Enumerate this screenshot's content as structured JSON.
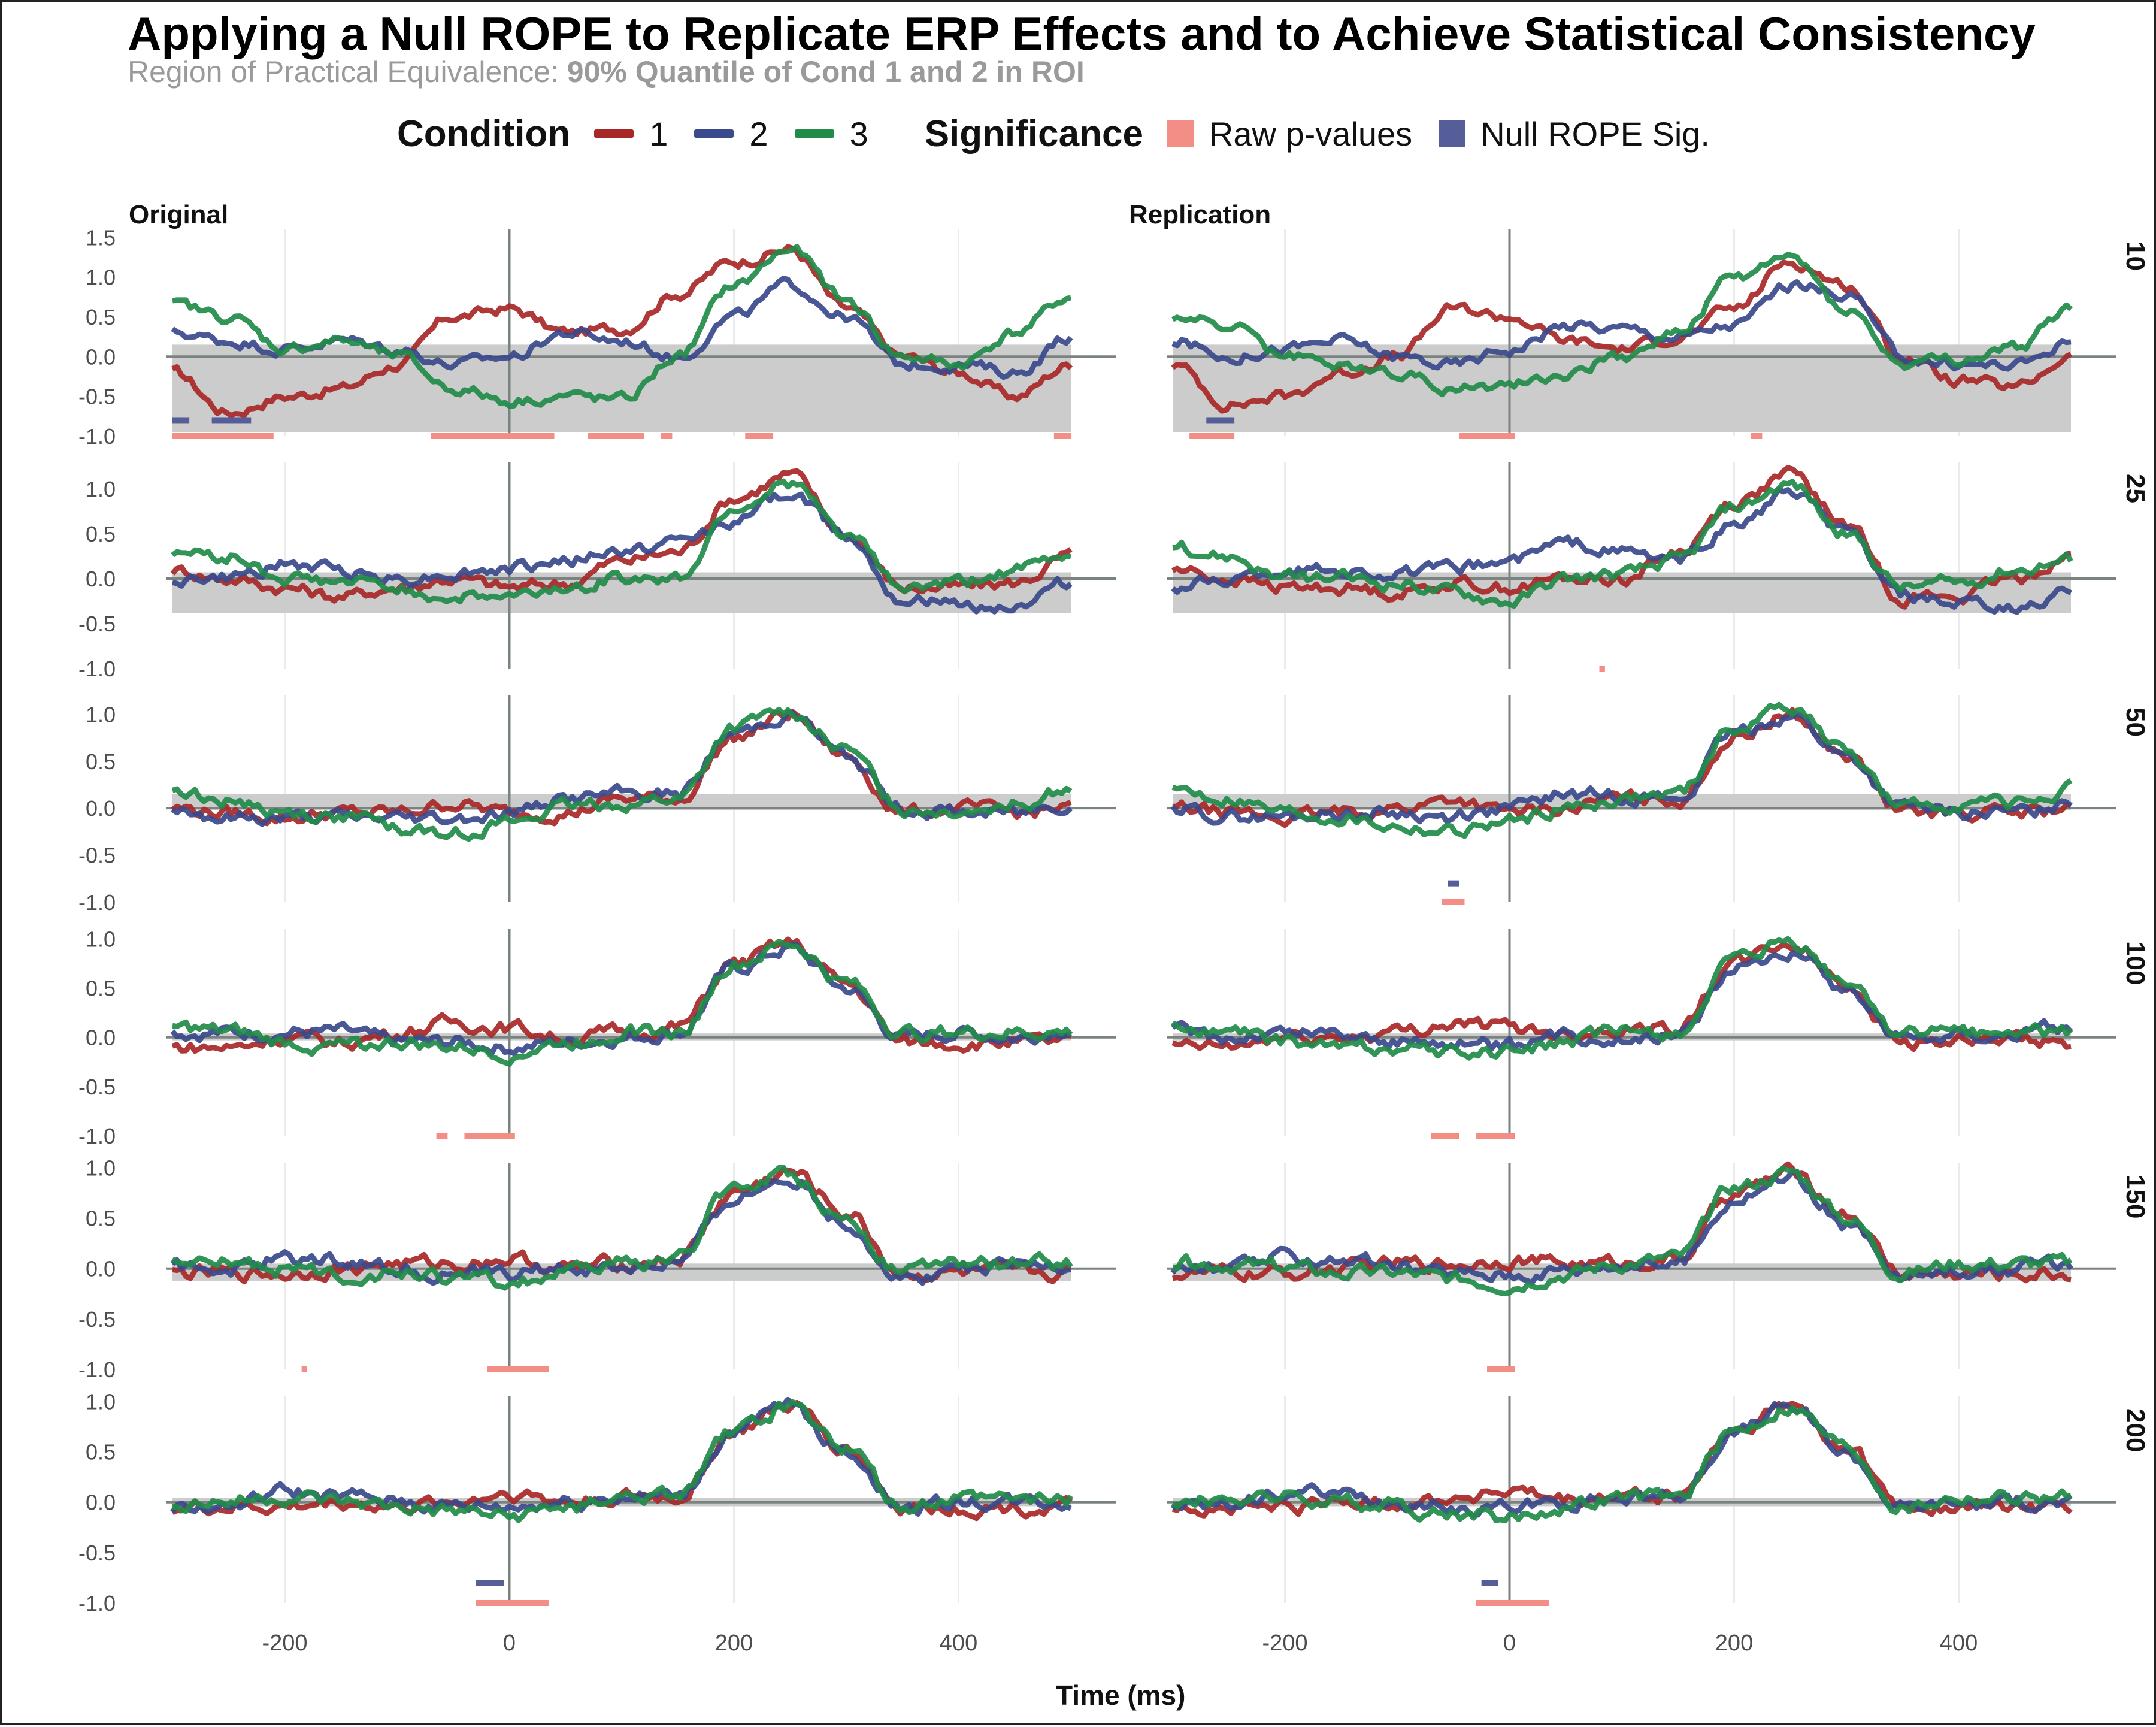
{
  "title": "Applying a Null ROPE to Replicate ERP Effects and to Achieve Statistical Consistency",
  "subtitle_prefix": "Region of Practical Equivalence:",
  "subtitle_bold": "90% Quantile of Cond 1 and 2 in ROI",
  "legend": {
    "condition_title": "Condition",
    "conditions": [
      {
        "label": "1",
        "color": "#a82828"
      },
      {
        "label": "2",
        "color": "#3a4a8c"
      },
      {
        "label": "3",
        "color": "#228b4a"
      }
    ],
    "significance_title": "Significance",
    "significance": [
      {
        "label": "Raw p-values",
        "color": "#f28e86"
      },
      {
        "label": "Null ROPE Sig.",
        "color": "#565e9a"
      }
    ]
  },
  "colors": {
    "cond1": "#a82828",
    "cond2": "#3a4a8c",
    "cond3": "#228b4a",
    "raw_p": "#f28e86",
    "rope_sig": "#565e9a",
    "rope_band": "#cccccc",
    "zero_line": "#7a8380",
    "grid": "#ebebeb"
  },
  "chart_data": {
    "type": "line",
    "columns": [
      "Original",
      "Replication"
    ],
    "rows": [
      "10",
      "25",
      "50",
      "100",
      "150",
      "200"
    ],
    "xlabel": "Time (ms)",
    "xlim": [
      -300,
      500
    ],
    "xticks": [
      -200,
      0,
      200,
      400
    ],
    "xtick_labels": [
      "-200",
      "0",
      "200",
      "400"
    ],
    "ylim_by_row": [
      [
        -1.0,
        1.6
      ],
      [
        -1.0,
        1.3
      ],
      [
        -1.0,
        1.2
      ],
      [
        -1.0,
        1.1
      ],
      [
        -1.0,
        1.05
      ],
      [
        -1.0,
        1.05
      ]
    ],
    "yticks_by_row": [
      [
        "-1.0",
        "-0.5",
        "0.0",
        "0.5",
        "1.0",
        "1.5"
      ],
      [
        "-1.0",
        "-0.5",
        "0.0",
        "0.5",
        "1.0"
      ],
      [
        "-1.0",
        "-0.5",
        "0.0",
        "0.5",
        "1.0"
      ],
      [
        "-1.0",
        "-0.5",
        "0.0",
        "0.5",
        "1.0"
      ],
      [
        "-1.0",
        "-0.5",
        "0.0",
        "0.5",
        "1.0"
      ],
      [
        "-1.0",
        "-0.5",
        "0.0",
        "0.5",
        "1.0"
      ]
    ],
    "rope_by_row": [
      [
        -0.95,
        0.15
      ],
      [
        -0.38,
        0.07
      ],
      [
        -0.02,
        0.15
      ],
      [
        -0.03,
        0.04
      ],
      [
        -0.12,
        0.05
      ],
      [
        -0.04,
        0.04
      ]
    ],
    "time": [
      -300,
      -250,
      -200,
      -150,
      -100,
      -50,
      0,
      50,
      100,
      150,
      200,
      250,
      300,
      350,
      400,
      450,
      500
    ],
    "panels": {
      "Original": [
        {
          "cond1": [
            -0.2,
            -0.7,
            -0.5,
            -0.4,
            -0.1,
            0.5,
            0.6,
            0.3,
            0.35,
            0.8,
            1.2,
            1.35,
            0.6,
            0.0,
            -0.2,
            -0.5,
            -0.1
          ],
          "cond2": [
            0.3,
            0.2,
            0.1,
            0.2,
            0.1,
            -0.1,
            0.0,
            0.3,
            0.2,
            0.0,
            0.5,
            0.9,
            0.5,
            -0.1,
            -0.1,
            -0.2,
            0.25
          ],
          "cond3": [
            0.65,
            0.5,
            0.1,
            0.2,
            0.0,
            -0.4,
            -0.55,
            -0.5,
            -0.55,
            0.0,
            0.9,
            1.35,
            0.7,
            0.0,
            -0.1,
            0.3,
            0.75
          ],
          "raw_sig": [
            [
              -300,
              -210
            ],
            [
              -70,
              40
            ],
            [
              70,
              120
            ],
            [
              135,
              145
            ],
            [
              210,
              235
            ],
            [
              485,
              500
            ]
          ],
          "rope_sig": [
            [
              -300,
              -285
            ],
            [
              -265,
              -230
            ]
          ]
        },
        {
          "cond1": [
            0.1,
            0.0,
            -0.1,
            -0.2,
            -0.1,
            0.0,
            -0.1,
            -0.05,
            0.2,
            0.3,
            0.9,
            1.15,
            0.5,
            -0.1,
            -0.1,
            -0.05,
            0.25
          ],
          "cond2": [
            0.0,
            0.0,
            0.15,
            0.1,
            0.0,
            0.05,
            0.1,
            0.2,
            0.3,
            0.4,
            0.65,
            0.95,
            0.5,
            -0.2,
            -0.3,
            -0.3,
            -0.05
          ],
          "cond3": [
            0.3,
            0.25,
            0.0,
            -0.05,
            -0.1,
            -0.2,
            -0.2,
            -0.1,
            0.0,
            0.0,
            0.8,
            1.05,
            0.5,
            -0.1,
            -0.05,
            0.1,
            0.25
          ],
          "raw_sig": [],
          "rope_sig": []
        },
        {
          "cond1": [
            0.0,
            -0.05,
            -0.1,
            -0.05,
            -0.05,
            0.05,
            -0.05,
            -0.05,
            0.1,
            0.1,
            0.75,
            1.0,
            0.55,
            -0.05,
            0.0,
            -0.05,
            0.0
          ],
          "cond2": [
            0.0,
            -0.1,
            -0.1,
            -0.1,
            -0.1,
            -0.1,
            -0.05,
            0.1,
            0.15,
            0.15,
            0.8,
            1.0,
            0.55,
            0.0,
            -0.05,
            -0.05,
            0.05
          ],
          "cond3": [
            0.2,
            0.1,
            -0.05,
            -0.1,
            -0.2,
            -0.25,
            -0.15,
            0.0,
            0.05,
            0.1,
            0.85,
            1.05,
            0.6,
            0.0,
            0.0,
            0.05,
            0.2
          ],
          "raw_sig": [],
          "rope_sig": []
        },
        {
          "cond1": [
            -0.1,
            -0.1,
            0.0,
            -0.05,
            0.05,
            0.15,
            0.1,
            0.0,
            0.05,
            0.1,
            0.75,
            0.95,
            0.55,
            -0.05,
            -0.05,
            -0.05,
            -0.05
          ],
          "cond2": [
            0.05,
            0.05,
            0.05,
            0.05,
            -0.05,
            -0.05,
            -0.1,
            -0.05,
            0.0,
            0.05,
            0.7,
            0.9,
            0.5,
            0.0,
            0.05,
            0.0,
            0.1
          ],
          "cond3": [
            0.1,
            0.05,
            -0.05,
            -0.1,
            -0.05,
            -0.1,
            -0.15,
            -0.05,
            0.05,
            0.05,
            0.75,
            0.95,
            0.55,
            0.05,
            0.05,
            0.05,
            0.05
          ],
          "raw_sig": [
            [
              -65,
              -55
            ],
            [
              -40,
              5
            ]
          ],
          "rope_sig": []
        },
        {
          "cond1": [
            -0.05,
            -0.05,
            -0.05,
            0.0,
            0.05,
            0.05,
            0.1,
            0.0,
            0.05,
            0.1,
            0.75,
            0.95,
            0.55,
            -0.05,
            -0.05,
            -0.05,
            -0.05
          ],
          "cond2": [
            0.0,
            0.0,
            0.1,
            0.1,
            0.0,
            -0.05,
            -0.05,
            0.0,
            0.0,
            0.05,
            0.7,
            0.9,
            0.45,
            -0.1,
            0.0,
            0.0,
            0.05
          ],
          "cond3": [
            0.05,
            0.05,
            0.0,
            -0.05,
            -0.05,
            -0.1,
            -0.15,
            -0.05,
            0.05,
            0.1,
            0.8,
            0.95,
            0.5,
            -0.05,
            0.05,
            0.05,
            0.05
          ],
          "raw_sig": [
            [
              -185,
              -180
            ],
            [
              -20,
              35
            ]
          ],
          "rope_sig": []
        },
        {
          "cond1": [
            -0.05,
            -0.05,
            -0.05,
            0.0,
            -0.05,
            0.0,
            0.1,
            0.0,
            0.05,
            0.05,
            0.7,
            0.95,
            0.55,
            -0.05,
            -0.05,
            -0.05,
            -0.05
          ],
          "cond2": [
            -0.05,
            -0.05,
            0.1,
            0.05,
            0.0,
            -0.05,
            -0.05,
            0.0,
            0.05,
            0.05,
            0.7,
            0.95,
            0.5,
            -0.05,
            0.0,
            0.0,
            0.0
          ],
          "cond3": [
            0.0,
            0.0,
            0.05,
            0.0,
            -0.05,
            -0.1,
            -0.15,
            -0.05,
            0.05,
            0.05,
            0.7,
            0.95,
            0.55,
            -0.05,
            0.05,
            0.05,
            0.05
          ],
          "raw_sig": [
            [
              -30,
              35
            ]
          ],
          "rope_sig": [
            [
              -30,
              -5
            ]
          ]
        }
      ],
      "Replication": [
        {
          "cond1": [
            -0.1,
            -0.6,
            -0.5,
            -0.2,
            0.0,
            0.6,
            0.5,
            0.2,
            0.1,
            0.25,
            0.6,
            1.2,
            0.9,
            0.0,
            -0.3,
            -0.4,
            0.0
          ],
          "cond2": [
            0.2,
            0.0,
            0.1,
            0.2,
            0.0,
            -0.1,
            0.1,
            0.4,
            0.35,
            0.25,
            0.4,
            0.9,
            0.8,
            0.0,
            -0.1,
            -0.1,
            0.2
          ],
          "cond3": [
            0.5,
            0.4,
            0.0,
            -0.1,
            -0.2,
            -0.4,
            -0.35,
            -0.2,
            0.0,
            0.3,
            1.0,
            1.25,
            0.6,
            -0.1,
            -0.05,
            0.1,
            0.6
          ],
          "raw_sig": [
            [
              -285,
              -245
            ],
            [
              -45,
              5
            ],
            [
              215,
              225
            ]
          ],
          "rope_sig": [
            [
              -270,
              -245
            ]
          ]
        },
        {
          "cond1": [
            0.1,
            0.0,
            -0.1,
            -0.1,
            -0.15,
            -0.05,
            -0.1,
            0.0,
            0.0,
            0.3,
            0.85,
            1.15,
            0.6,
            -0.2,
            -0.2,
            0.0,
            0.25
          ],
          "cond2": [
            -0.1,
            0.0,
            0.1,
            0.1,
            0.05,
            0.1,
            0.2,
            0.4,
            0.3,
            0.2,
            0.6,
            0.95,
            0.5,
            -0.2,
            -0.3,
            -0.35,
            -0.15
          ],
          "cond3": [
            0.35,
            0.25,
            0.0,
            0.0,
            -0.05,
            -0.15,
            -0.25,
            0.0,
            0.05,
            0.2,
            0.8,
            1.05,
            0.5,
            -0.1,
            -0.05,
            0.1,
            0.2
          ],
          "raw_sig": [
            [
              80,
              85
            ]
          ],
          "rope_sig": []
        },
        {
          "cond1": [
            0.0,
            -0.05,
            -0.1,
            -0.05,
            0.0,
            0.1,
            -0.05,
            0.0,
            0.1,
            0.1,
            0.75,
            1.0,
            0.55,
            -0.05,
            -0.05,
            -0.05,
            0.0
          ],
          "cond2": [
            0.0,
            -0.1,
            -0.1,
            -0.05,
            -0.05,
            -0.1,
            0.0,
            0.15,
            0.15,
            0.1,
            0.8,
            1.0,
            0.55,
            0.0,
            -0.05,
            -0.05,
            0.05
          ],
          "cond3": [
            0.2,
            0.1,
            -0.05,
            -0.1,
            -0.2,
            -0.25,
            -0.15,
            0.0,
            0.1,
            0.15,
            0.85,
            1.1,
            0.6,
            0.0,
            0.05,
            0.05,
            0.2
          ],
          "raw_sig": [
            [
              -60,
              -40
            ]
          ],
          "rope_sig": [
            [
              -55,
              -45
            ]
          ]
        },
        {
          "cond1": [
            -0.1,
            -0.1,
            0.0,
            0.0,
            0.05,
            0.15,
            0.1,
            0.05,
            0.1,
            0.1,
            0.75,
            0.95,
            0.55,
            -0.05,
            -0.05,
            -0.05,
            -0.05
          ],
          "cond2": [
            0.05,
            0.0,
            0.05,
            0.05,
            -0.05,
            -0.05,
            -0.1,
            0.0,
            0.0,
            0.05,
            0.7,
            0.9,
            0.5,
            0.0,
            0.05,
            0.05,
            0.1
          ],
          "cond3": [
            0.1,
            0.05,
            -0.05,
            -0.1,
            -0.1,
            -0.15,
            -0.15,
            -0.05,
            0.05,
            0.05,
            0.75,
            0.95,
            0.55,
            0.05,
            0.05,
            0.05,
            0.05
          ],
          "raw_sig": [
            [
              -70,
              -45
            ],
            [
              -30,
              5
            ]
          ],
          "rope_sig": []
        },
        {
          "cond1": [
            -0.05,
            -0.05,
            -0.05,
            0.0,
            0.05,
            0.05,
            0.1,
            0.05,
            0.05,
            0.1,
            0.75,
            0.95,
            0.55,
            -0.05,
            -0.05,
            -0.05,
            -0.05
          ],
          "cond2": [
            0.0,
            0.0,
            0.1,
            0.1,
            0.0,
            -0.05,
            -0.05,
            0.0,
            0.05,
            0.05,
            0.7,
            0.9,
            0.45,
            -0.1,
            0.0,
            0.0,
            0.05
          ],
          "cond3": [
            0.05,
            0.05,
            0.0,
            -0.05,
            -0.05,
            -0.1,
            -0.15,
            -0.05,
            0.05,
            0.1,
            0.8,
            0.95,
            0.5,
            -0.05,
            0.05,
            0.05,
            0.05
          ],
          "raw_sig": [
            [
              -20,
              5
            ]
          ],
          "rope_sig": []
        },
        {
          "cond1": [
            -0.05,
            -0.05,
            -0.05,
            0.0,
            0.0,
            0.05,
            0.1,
            0.0,
            0.05,
            0.05,
            0.7,
            0.95,
            0.55,
            -0.05,
            -0.05,
            -0.05,
            -0.05
          ],
          "cond2": [
            -0.05,
            -0.05,
            0.1,
            0.05,
            0.0,
            -0.05,
            -0.05,
            0.0,
            0.05,
            0.05,
            0.7,
            0.95,
            0.5,
            -0.05,
            0.0,
            0.0,
            0.0
          ],
          "cond3": [
            0.0,
            0.05,
            0.05,
            0.0,
            -0.05,
            -0.1,
            -0.15,
            -0.05,
            0.05,
            0.05,
            0.7,
            0.95,
            0.55,
            -0.05,
            0.05,
            0.05,
            0.05
          ],
          "raw_sig": [
            [
              -30,
              35
            ]
          ],
          "rope_sig": [
            [
              -25,
              -10
            ]
          ]
        }
      ]
    }
  }
}
